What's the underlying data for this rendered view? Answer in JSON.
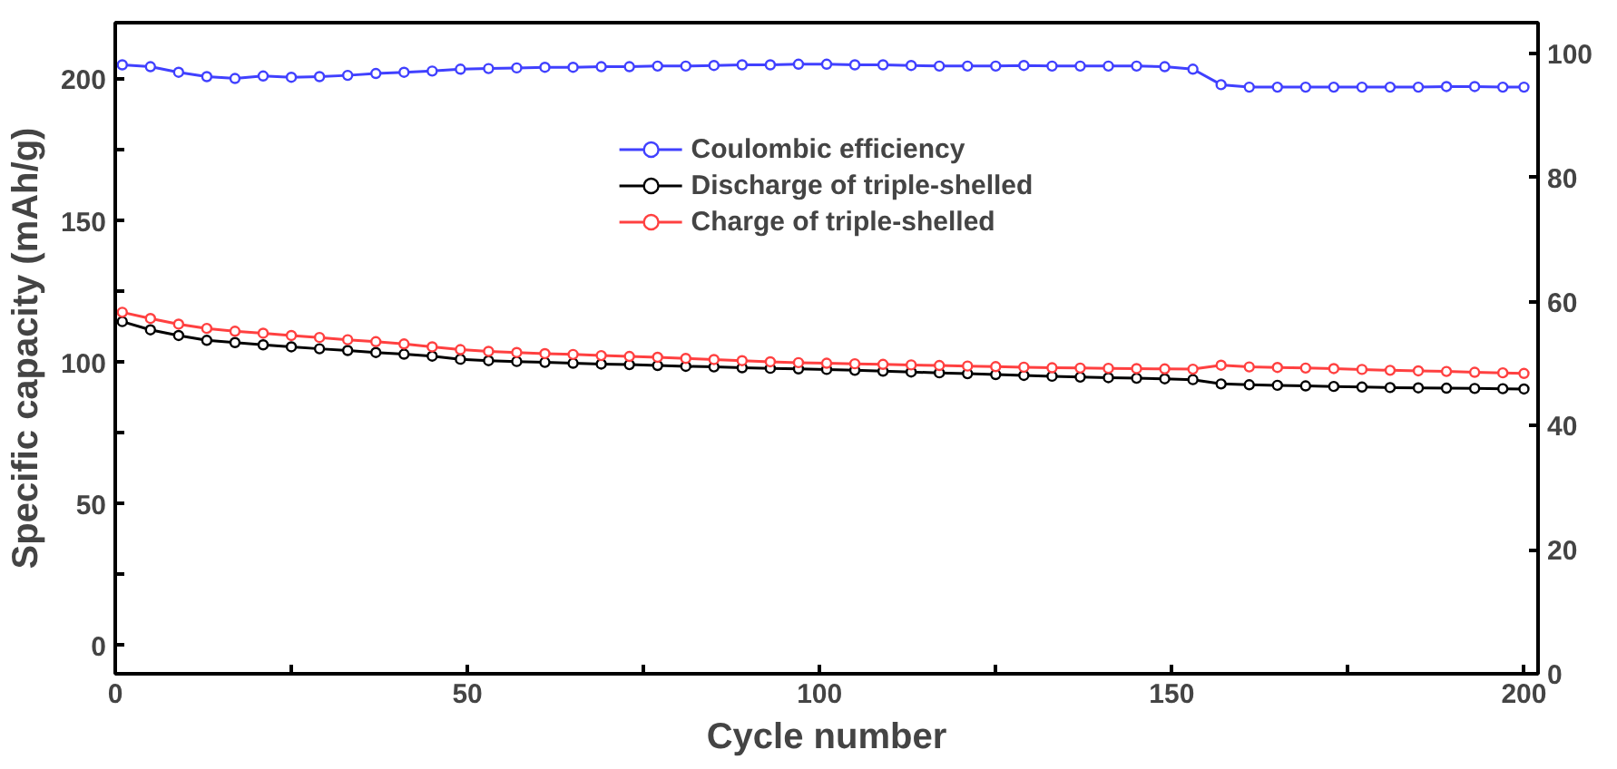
{
  "chart_data": {
    "type": "line",
    "xlabel": "Cycle number",
    "ylabel": "Specific capacity (mAh/g)",
    "x": [
      1,
      5,
      9,
      13,
      17,
      21,
      25,
      29,
      33,
      37,
      41,
      45,
      49,
      53,
      57,
      61,
      65,
      69,
      73,
      77,
      81,
      85,
      89,
      93,
      97,
      101,
      105,
      109,
      113,
      117,
      121,
      125,
      129,
      133,
      137,
      141,
      145,
      149,
      153,
      157,
      161,
      165,
      169,
      173,
      177,
      181,
      185,
      189,
      193,
      197,
      200
    ],
    "series": [
      {
        "name": "Coulombic efficiency",
        "color": "#4040ff",
        "axis": "y2",
        "values": [
          98.2,
          97.9,
          97.0,
          96.3,
          96.0,
          96.4,
          96.2,
          96.3,
          96.5,
          96.8,
          97.0,
          97.2,
          97.5,
          97.6,
          97.7,
          97.8,
          97.8,
          97.9,
          97.9,
          98.0,
          98.0,
          98.1,
          98.2,
          98.2,
          98.3,
          98.3,
          98.2,
          98.2,
          98.1,
          98.0,
          98.0,
          98.0,
          98.1,
          98.0,
          98.0,
          98.0,
          98.0,
          97.9,
          97.5,
          95.0,
          94.6,
          94.6,
          94.6,
          94.6,
          94.6,
          94.6,
          94.6,
          94.7,
          94.7,
          94.6,
          94.6
        ]
      },
      {
        "name": "Discharge of triple-shelled",
        "color": "#000000",
        "values": [
          114.4,
          111.5,
          109.5,
          107.8,
          107.0,
          106.2,
          105.5,
          104.8,
          104.2,
          103.5,
          102.9,
          102.2,
          101.1,
          100.6,
          100.3,
          100.0,
          99.7,
          99.4,
          99.2,
          98.9,
          98.6,
          98.4,
          98.1,
          97.9,
          97.7,
          97.5,
          97.2,
          96.9,
          96.6,
          96.3,
          96.0,
          95.7,
          95.4,
          95.1,
          94.8,
          94.6,
          94.4,
          94.2,
          93.9,
          92.4,
          92.1,
          91.9,
          91.7,
          91.5,
          91.3,
          91.1,
          91.0,
          90.9,
          90.8,
          90.7,
          90.6
        ]
      },
      {
        "name": "Charge of triple-shelled",
        "color": "#ff4040",
        "values": [
          117.7,
          115.5,
          113.5,
          112.0,
          111.0,
          110.3,
          109.5,
          108.8,
          108.0,
          107.3,
          106.5,
          105.5,
          104.5,
          103.9,
          103.5,
          103.1,
          102.8,
          102.4,
          102.1,
          101.8,
          101.4,
          101.0,
          100.6,
          100.2,
          99.9,
          99.7,
          99.5,
          99.3,
          99.1,
          98.9,
          98.7,
          98.5,
          98.3,
          98.1,
          98.0,
          97.9,
          97.8,
          97.7,
          97.6,
          99.0,
          98.4,
          98.2,
          98.0,
          97.8,
          97.5,
          97.2,
          97.0,
          96.8,
          96.5,
          96.3,
          96.1
        ]
      }
    ],
    "xlim": [
      0,
      202
    ],
    "ylim": [
      -10,
      220
    ],
    "y2lim": [
      0,
      105
    ],
    "xticks": [
      0,
      {
        "value": 25,
        "label": null
      },
      50,
      {
        "value": 75,
        "label": null
      },
      100,
      {
        "value": 125,
        "label": null
      },
      150,
      {
        "value": 175,
        "label": null
      },
      200
    ],
    "yticks": [
      0,
      {
        "value": 25,
        "label": null
      },
      50,
      {
        "value": 75,
        "label": null
      },
      100,
      {
        "value": 125,
        "label": null
      },
      150,
      {
        "value": 175,
        "label": null
      },
      200
    ],
    "y2ticks": [
      0,
      20,
      40,
      60,
      80,
      100
    ],
    "legend": "top",
    "marker": "circle",
    "line_style": "solid",
    "grid": false
  }
}
